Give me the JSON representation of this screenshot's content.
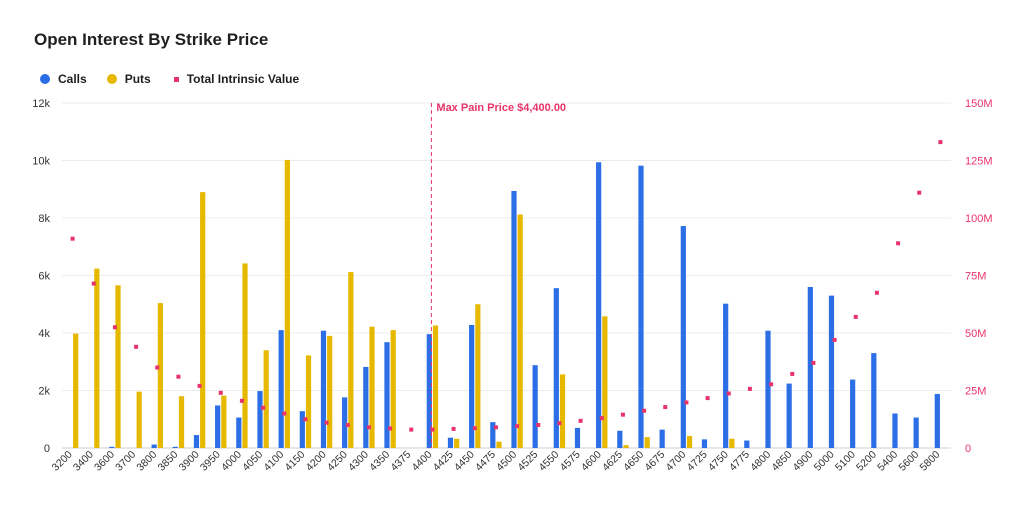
{
  "chart_data": {
    "type": "bar",
    "title": "Open Interest By Strike Price",
    "categories": [
      "3200",
      "3400",
      "3600",
      "3700",
      "3800",
      "3850",
      "3900",
      "3950",
      "4000",
      "4050",
      "4100",
      "4150",
      "4200",
      "4250",
      "4300",
      "4350",
      "4375",
      "4400",
      "4425",
      "4450",
      "4475",
      "4500",
      "4525",
      "4550",
      "4575",
      "4600",
      "4625",
      "4650",
      "4675",
      "4700",
      "4725",
      "4750",
      "4775",
      "4800",
      "4850",
      "4900",
      "5000",
      "5100",
      "5200",
      "5400",
      "5600",
      "5800"
    ],
    "series": [
      {
        "name": "Calls",
        "type": "bar",
        "axis": "left",
        "color": "#2b6ee6",
        "values": [
          0,
          0,
          40,
          0,
          120,
          40,
          450,
          1480,
          1060,
          1980,
          4100,
          1280,
          4080,
          1760,
          2820,
          3680,
          0,
          3960,
          360,
          4280,
          900,
          8940,
          2880,
          5560,
          700,
          9940,
          600,
          9820,
          640,
          7720,
          300,
          5020,
          260,
          4080,
          2240,
          5600,
          5300,
          2380,
          3300,
          1200,
          1060,
          1880
        ]
      },
      {
        "name": "Puts",
        "type": "bar",
        "axis": "left",
        "color": "#e6b800",
        "values": [
          3980,
          6240,
          5660,
          1960,
          5040,
          1800,
          8900,
          1820,
          6420,
          3400,
          10020,
          3220,
          3900,
          6120,
          4220,
          4100,
          0,
          4260,
          320,
          5000,
          220,
          8120,
          0,
          2560,
          0,
          4580,
          100,
          380,
          0,
          420,
          0,
          320,
          0,
          0,
          0,
          0,
          0,
          0,
          0,
          0,
          0,
          0
        ]
      },
      {
        "name": "Total Intrinsic Value",
        "type": "point",
        "axis": "right",
        "color": "#e8336a",
        "values": [
          91000000,
          71500000,
          52500000,
          44000000,
          35000000,
          31000000,
          27000000,
          24000000,
          20500000,
          17500000,
          15000000,
          12500000,
          11000000,
          10000000,
          9000000,
          8500000,
          8000000,
          8000000,
          8300000,
          8600000,
          9000000,
          9500000,
          10000000,
          10800000,
          11800000,
          13000000,
          14500000,
          16200000,
          17800000,
          19800000,
          21700000,
          23700000,
          25700000,
          27700000,
          32200000,
          37000000,
          47000000,
          57000000,
          67500000,
          89000000,
          111000000,
          133000000
        ]
      }
    ],
    "y_left": {
      "min": 0,
      "max": 12000,
      "ticks": [
        0,
        2000,
        4000,
        6000,
        8000,
        10000,
        12000
      ],
      "tick_labels": [
        "0",
        "2k",
        "4k",
        "6k",
        "8k",
        "10k",
        "12k"
      ]
    },
    "y_right": {
      "min": 0,
      "max": 150000000,
      "ticks": [
        0,
        25000000,
        50000000,
        75000000,
        100000000,
        125000000,
        150000000
      ],
      "tick_labels": [
        "0",
        "25M",
        "50M",
        "75M",
        "100M",
        "125M",
        "150M"
      ]
    },
    "grid": true,
    "legend_position": "top-left",
    "annotation": {
      "category": "4400",
      "label": "Max Pain Price $4,400.00",
      "color": "#e8336a"
    }
  },
  "legend": [
    {
      "label": "Calls",
      "color": "#2b6ee6",
      "shape": "circle"
    },
    {
      "label": "Puts",
      "color": "#e6b800",
      "shape": "circle"
    },
    {
      "label": "Total Intrinsic Value",
      "color": "#e8336a",
      "shape": "square"
    }
  ]
}
